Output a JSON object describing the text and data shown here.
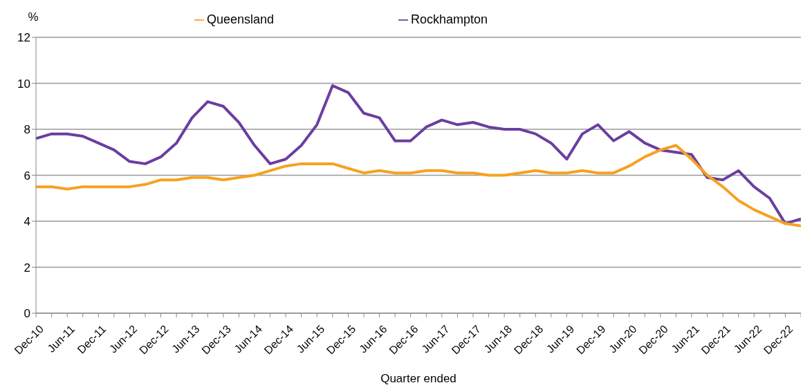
{
  "chart_data": {
    "type": "line",
    "xlabel": "Quarter ended",
    "ylabel": "%",
    "categories": [
      "Dec-10",
      null,
      "Jun-11",
      null,
      "Dec-11",
      null,
      "Jun-12",
      null,
      "Dec-12",
      null,
      "Jun-13",
      null,
      "Dec-13",
      null,
      "Jun-14",
      null,
      "Dec-14",
      null,
      "Jun-15",
      null,
      "Dec-15",
      null,
      "Jun-16",
      null,
      "Dec-16",
      null,
      "Jun-17",
      null,
      "Dec-17",
      null,
      "Jun-18",
      null,
      "Dec-18",
      null,
      "Jun-19",
      null,
      "Dec-19",
      null,
      "Jun-20",
      null,
      "Dec-20",
      null,
      "Jun-21",
      null,
      "Dec-21",
      null,
      "Jun-22",
      null,
      "Dec-22",
      null
    ],
    "series": [
      {
        "name": "Rockhampton",
        "color": "#6a3ea1",
        "values": [
          7.6,
          7.8,
          7.8,
          7.7,
          7.4,
          7.1,
          6.6,
          6.5,
          6.8,
          7.4,
          8.5,
          9.2,
          9.0,
          8.3,
          7.3,
          6.5,
          6.7,
          7.3,
          8.2,
          9.9,
          9.6,
          8.7,
          8.5,
          7.5,
          7.5,
          8.1,
          8.4,
          8.2,
          8.3,
          8.1,
          8.0,
          8.0,
          7.8,
          7.4,
          6.7,
          7.8,
          8.2,
          7.5,
          7.9,
          7.4,
          7.1,
          7.0,
          6.9,
          5.9,
          5.8,
          6.2,
          5.5,
          5.0,
          3.9,
          4.1
        ]
      },
      {
        "name": "Queensland",
        "color": "#f7a11f",
        "values": [
          5.5,
          5.5,
          5.4,
          5.5,
          5.5,
          5.5,
          5.5,
          5.6,
          5.8,
          5.8,
          5.9,
          5.9,
          5.8,
          5.9,
          6.0,
          6.2,
          6.4,
          6.5,
          6.5,
          6.5,
          6.3,
          6.1,
          6.2,
          6.1,
          6.1,
          6.2,
          6.2,
          6.1,
          6.1,
          6.0,
          6.0,
          6.1,
          6.2,
          6.1,
          6.1,
          6.2,
          6.1,
          6.1,
          6.4,
          6.8,
          7.1,
          7.3,
          6.7,
          6.0,
          5.5,
          4.9,
          4.5,
          4.2,
          3.9,
          3.8
        ]
      }
    ],
    "ylim": [
      0,
      12
    ],
    "yticks": [
      0,
      2,
      4,
      6,
      8,
      10,
      12
    ],
    "grid": "y",
    "legend": "top",
    "marker": "none",
    "line_style": "solid"
  }
}
